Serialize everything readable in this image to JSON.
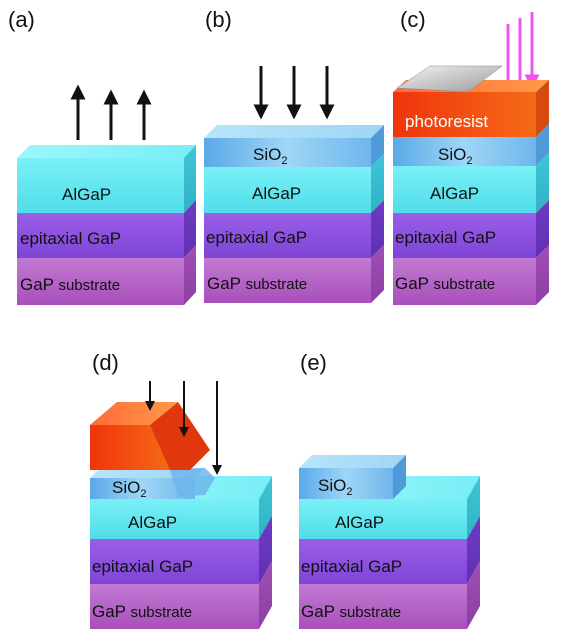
{
  "panels": [
    {
      "label": "(a)"
    },
    {
      "label": "(b)"
    },
    {
      "label": "(c)"
    },
    {
      "label": "(d)"
    },
    {
      "label": "(e)"
    }
  ],
  "layers": {
    "substrate": {
      "prefix": "GaP ",
      "suffix": "substrate",
      "color": "#b65fc7"
    },
    "epi": {
      "text": "epitaxial GaP",
      "color": "#8d4fe0"
    },
    "algap": {
      "text": "AlGaP",
      "color": "#5ee8f2"
    },
    "sio2": {
      "base": "SiO",
      "sub": "2",
      "color": "#8fcff2"
    },
    "photoresist": {
      "text": "photoresist",
      "color": "#f23a10"
    }
  },
  "colors": {
    "arrow": "#111111",
    "uv_arrow": "#ee55ee",
    "mask": "#bdbdbd"
  }
}
